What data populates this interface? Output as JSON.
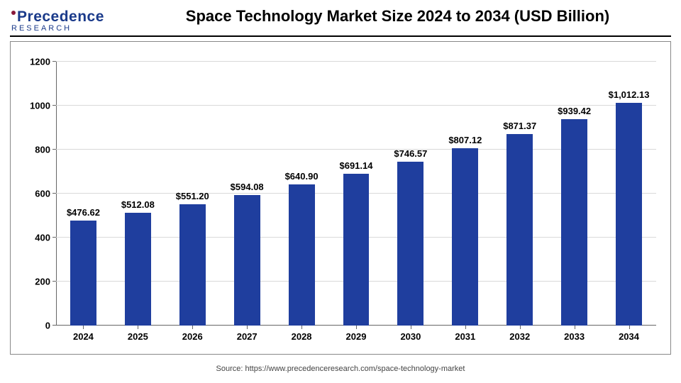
{
  "logo": {
    "line1_p": "P",
    "line1_rest": "recedence",
    "line2": "RESEARCH"
  },
  "title": "Space Technology Market Size 2024 to 2034 (USD Billion)",
  "source": "Source: https://www.precedenceresearch.com/space-technology-market",
  "chart": {
    "type": "bar",
    "categories": [
      "2024",
      "2025",
      "2026",
      "2027",
      "2028",
      "2029",
      "2030",
      "2031",
      "2032",
      "2033",
      "2034"
    ],
    "values": [
      476.62,
      512.08,
      551.2,
      594.08,
      640.9,
      691.14,
      746.57,
      807.12,
      871.37,
      939.42,
      1012.13
    ],
    "value_labels": [
      "$476.62",
      "$512.08",
      "$551.20",
      "$594.08",
      "$640.90",
      "$691.14",
      "$746.57",
      "$807.12",
      "$871.37",
      "$939.42",
      "$1,012.13"
    ],
    "bar_color": "#1f3e9e",
    "ylim": [
      0,
      1200
    ],
    "ytick_step": 200,
    "yticks": [
      "0",
      "200",
      "400",
      "600",
      "800",
      "1000",
      "1200"
    ],
    "grid_color": "#d9d9d9",
    "axis_color": "#666666",
    "background_color": "#ffffff",
    "bar_width_ratio": 0.48,
    "title_fontsize": 22,
    "label_fontsize": 13,
    "tick_fontsize": 13,
    "tick_fontweight": "700"
  }
}
